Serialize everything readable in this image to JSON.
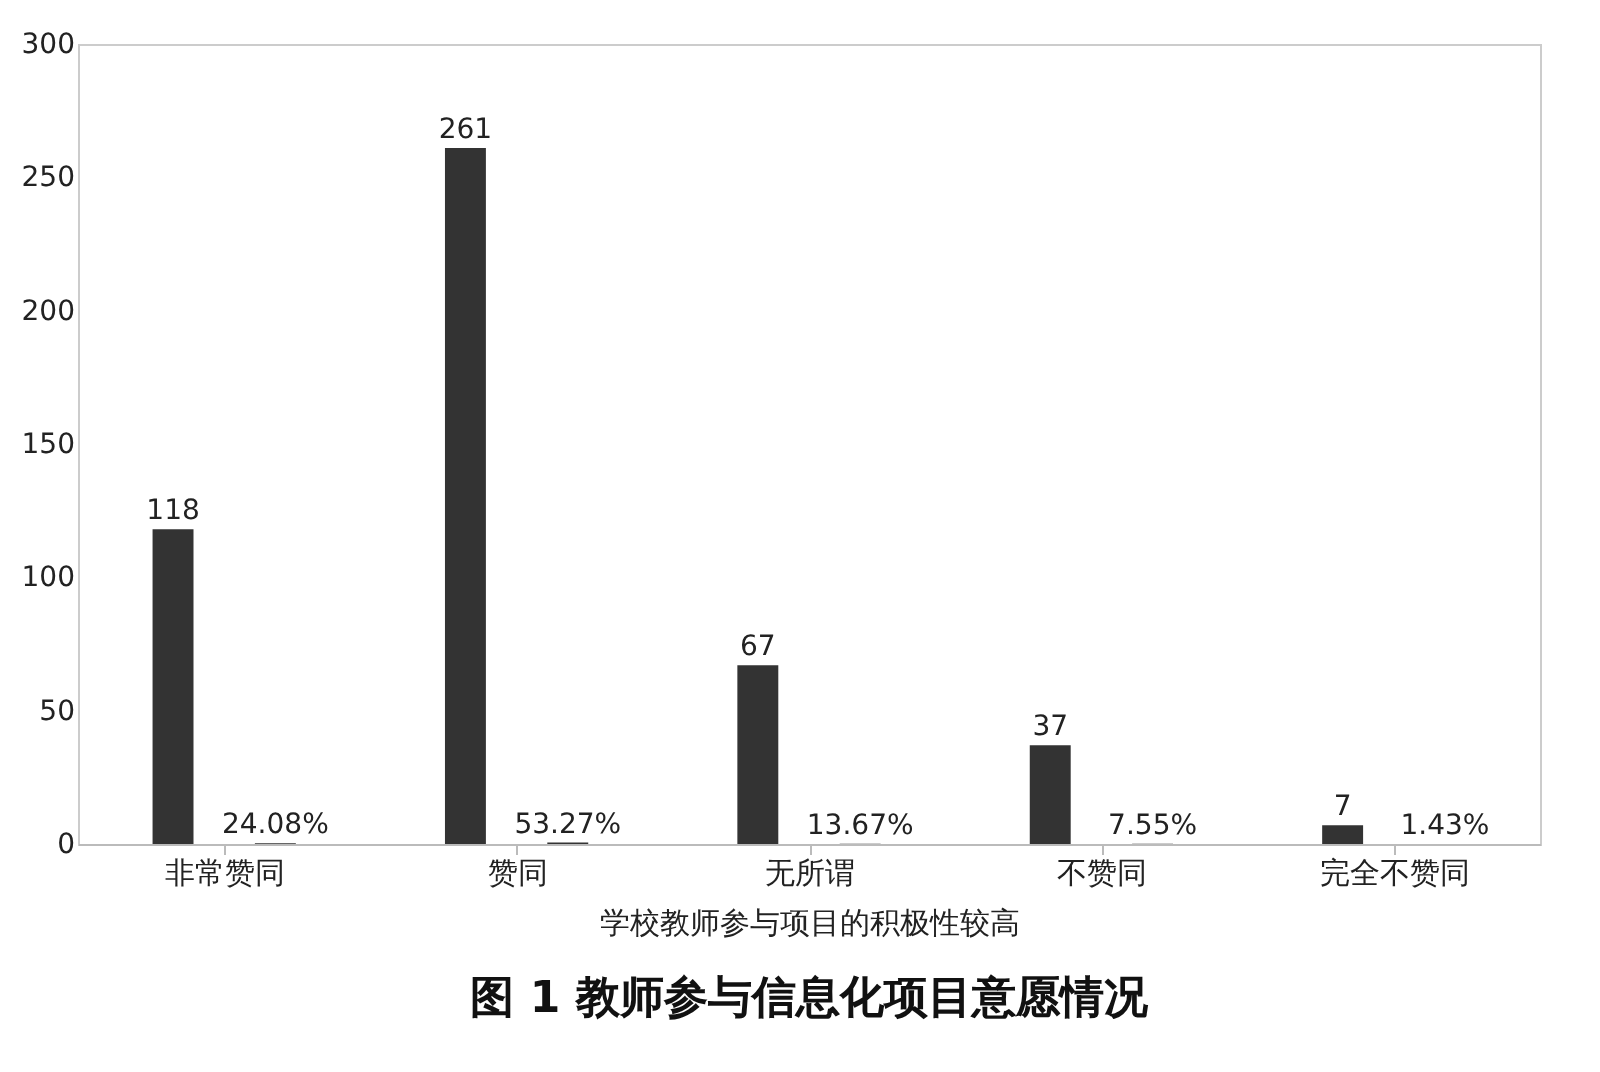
{
  "chart_data": {
    "type": "bar",
    "title": "图 1  教师参与信息化项目意愿情况",
    "xlabel": "学校教师参与项目的积极性较高",
    "categories": [
      "非常赞同",
      "赞同",
      "无所谓",
      "不赞同",
      "完全不赞同"
    ],
    "series": [
      {
        "color": "#333333",
        "values": [
          118,
          261,
          67,
          37,
          7
        ],
        "value_labels": [
          "118",
          "261",
          "67",
          "37",
          "7"
        ]
      },
      {
        "color": "#333333",
        "values": [
          0.2408,
          0.5327,
          0.1367,
          0.0755,
          0.0143
        ],
        "value_labels": [
          "24.08%",
          "53.27%",
          "13.67%",
          "7.55%",
          "1.43%"
        ]
      }
    ],
    "ylim": [
      0,
      300
    ],
    "yticks": [
      0,
      50,
      100,
      150,
      200,
      250,
      300
    ],
    "grid": false,
    "legend": false
  }
}
